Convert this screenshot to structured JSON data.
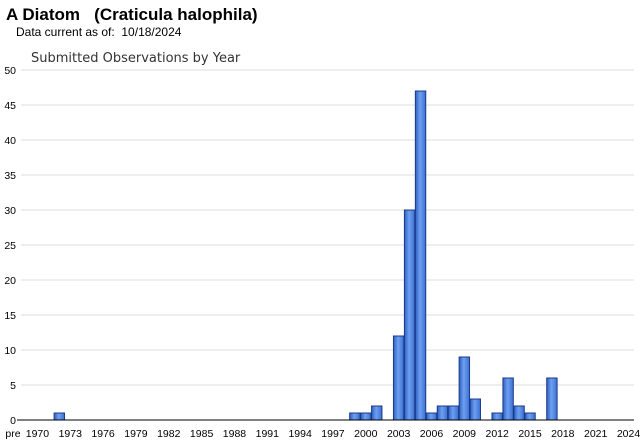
{
  "header": {
    "title": "A Diatom   (Craticula halophila)",
    "subtitle": "Data current as of:  10/18/2024"
  },
  "chart_data": {
    "type": "bar",
    "title": "Submitted Observations by Year",
    "xlabel": "",
    "ylabel": "",
    "ylim": [
      0,
      50
    ],
    "yticks": [
      0,
      5,
      10,
      15,
      20,
      25,
      30,
      35,
      40,
      45,
      50
    ],
    "grid": true,
    "categories": [
      "pre",
      "1970",
      "1971",
      "1972",
      "1973",
      "1974",
      "1975",
      "1976",
      "1977",
      "1978",
      "1979",
      "1980",
      "1981",
      "1982",
      "1983",
      "1984",
      "1985",
      "1986",
      "1987",
      "1988",
      "1989",
      "1990",
      "1991",
      "1992",
      "1993",
      "1994",
      "1995",
      "1996",
      "1997",
      "1998",
      "1999",
      "2000",
      "2001",
      "2002",
      "2003",
      "2004",
      "2005",
      "2006",
      "2007",
      "2008",
      "2009",
      "2010",
      "2011",
      "2012",
      "2013",
      "2014",
      "2015",
      "2016",
      "2017",
      "2018",
      "2019",
      "2020",
      "2021",
      "2022",
      "2023",
      "2024"
    ],
    "values": [
      0,
      0,
      0,
      1,
      0,
      0,
      0,
      0,
      0,
      0,
      0,
      0,
      0,
      0,
      0,
      0,
      0,
      0,
      0,
      0,
      0,
      0,
      0,
      0,
      0,
      0,
      0,
      0,
      0,
      0,
      1,
      1,
      2,
      0,
      12,
      30,
      47,
      1,
      2,
      2,
      9,
      3,
      0,
      1,
      6,
      2,
      1,
      0,
      6,
      0,
      0,
      0,
      0,
      0,
      0,
      0
    ],
    "xtick_labels": [
      "pre",
      "1970",
      "1973",
      "1976",
      "1979",
      "1982",
      "1985",
      "1988",
      "1991",
      "1994",
      "1997",
      "2000",
      "2003",
      "2006",
      "2009",
      "2012",
      "2015",
      "2018",
      "2021",
      "2024"
    ],
    "colors": {
      "bar": "#4f86e0",
      "bar_edge": "#1b3a8a",
      "grid": "#dddddd",
      "axis": "#000000"
    }
  }
}
